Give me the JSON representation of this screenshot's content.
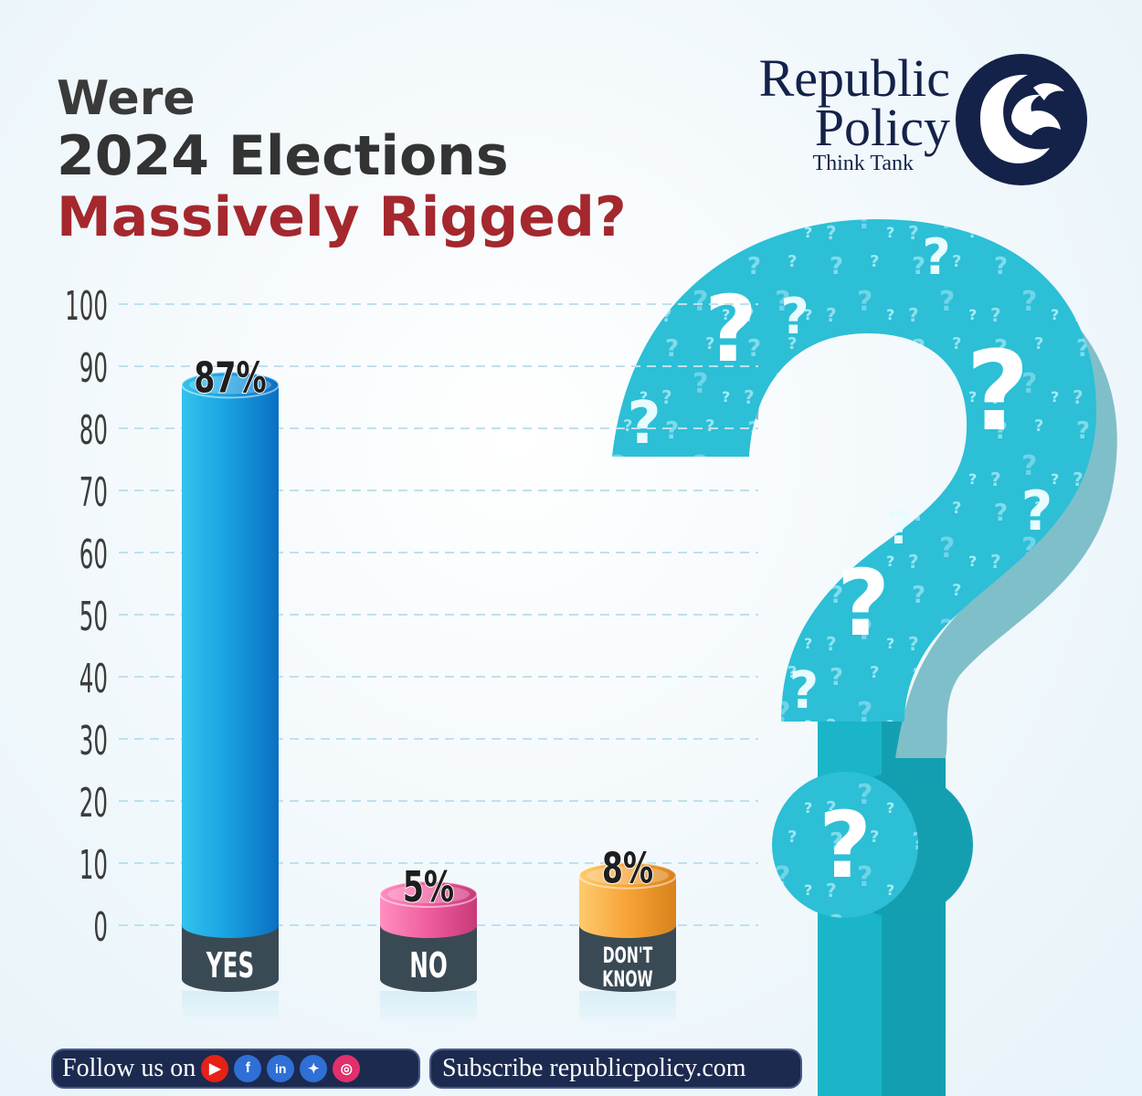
{
  "title": {
    "line1": "Were",
    "line2": "2024 Elections",
    "line3": "Massively Rigged?"
  },
  "logo": {
    "line1": "Republic",
    "line2": "Policy",
    "line3": "Think Tank"
  },
  "colors": {
    "accent_red": "#a4282e",
    "navy": "#1c2a50",
    "question_teal": "#2cbfd6"
  },
  "chart_data": {
    "type": "bar",
    "title": "",
    "xlabel": "",
    "ylabel": "",
    "ylim": [
      0,
      100
    ],
    "yticks": [
      0,
      10,
      20,
      30,
      40,
      50,
      60,
      70,
      80,
      90,
      100
    ],
    "grid": true,
    "categories": [
      "YES",
      "NO",
      "DON'T KNOW"
    ],
    "values": [
      87,
      5,
      8
    ],
    "value_labels": [
      "87%",
      "5%",
      "8%"
    ],
    "bar_colors": [
      "#1590d8",
      "#ef5d9e",
      "#f6a336"
    ]
  },
  "footer": {
    "follow_label": "Follow us on",
    "social_icons": [
      "youtube-icon",
      "facebook-icon",
      "linkedin-icon",
      "twitter-icon",
      "instagram-icon"
    ],
    "subscribe_label": "Subscribe republicpolicy.com"
  }
}
